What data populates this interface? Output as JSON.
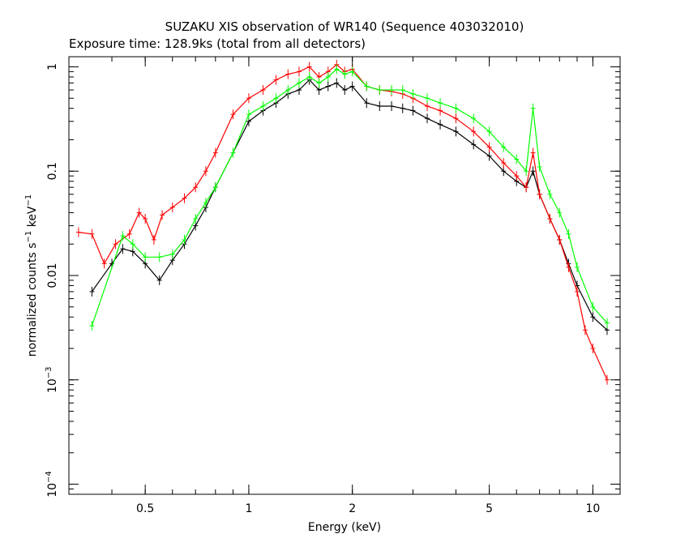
{
  "chart_data": {
    "type": "scatter",
    "title": "SUZAKU XIS observation of WR140 (Sequence 403032010)",
    "subtitle": "Exposure time: 128.9ks (total from all detectors)",
    "xlabel": "Energy (keV)",
    "ylabel_main": "normalized counts s",
    "ylabel_sup1": "−1",
    "ylabel_mid": " keV",
    "ylabel_sup2": "−1",
    "x_scale": "log",
    "y_scale": "log",
    "xlim": [
      0.3,
      12
    ],
    "ylim": [
      8e-05,
      1.25
    ],
    "x_ticks": [
      {
        "value": 0.5,
        "label": "0.5"
      },
      {
        "value": 1,
        "label": "1"
      },
      {
        "value": 2,
        "label": "2"
      },
      {
        "value": 5,
        "label": "5"
      },
      {
        "value": 10,
        "label": "10"
      }
    ],
    "y_ticks": [
      {
        "value": 1,
        "label": "1",
        "sup": ""
      },
      {
        "value": 0.1,
        "label": "0.1",
        "sup": ""
      },
      {
        "value": 0.01,
        "label": "0.01",
        "sup": ""
      },
      {
        "value": 0.001,
        "label": "10",
        "sup": "−3"
      },
      {
        "value": 0.0001,
        "label": "10",
        "sup": "−4"
      }
    ],
    "grid": false,
    "series": [
      {
        "color": "#000000",
        "x": [
          0.35,
          0.4,
          0.43,
          0.46,
          0.5,
          0.55,
          0.6,
          0.65,
          0.7,
          0.75,
          0.8,
          0.9,
          1.0,
          1.1,
          1.2,
          1.3,
          1.4,
          1.5,
          1.6,
          1.7,
          1.8,
          1.9,
          2.0,
          2.2,
          2.4,
          2.6,
          2.8,
          3.0,
          3.3,
          3.6,
          4.0,
          4.5,
          5.0,
          5.5,
          6.0,
          6.4,
          6.7,
          7.0,
          7.5,
          8.0,
          8.5,
          9.0,
          10.0,
          11.0
        ],
        "y": [
          0.007,
          0.013,
          0.018,
          0.017,
          0.013,
          0.009,
          0.014,
          0.02,
          0.03,
          0.045,
          0.07,
          0.15,
          0.3,
          0.38,
          0.45,
          0.55,
          0.6,
          0.75,
          0.6,
          0.65,
          0.7,
          0.6,
          0.65,
          0.45,
          0.42,
          0.42,
          0.4,
          0.38,
          0.32,
          0.28,
          0.24,
          0.18,
          0.14,
          0.1,
          0.08,
          0.07,
          0.1,
          0.06,
          0.035,
          0.022,
          0.013,
          0.008,
          0.004,
          0.003
        ]
      },
      {
        "color": "#ff0000",
        "x": [
          0.32,
          0.35,
          0.38,
          0.41,
          0.45,
          0.48,
          0.5,
          0.53,
          0.56,
          0.6,
          0.65,
          0.7,
          0.75,
          0.8,
          0.9,
          1.0,
          1.1,
          1.2,
          1.3,
          1.4,
          1.5,
          1.6,
          1.7,
          1.8,
          1.9,
          2.0,
          2.2,
          2.4,
          2.6,
          2.8,
          3.0,
          3.3,
          3.6,
          4.0,
          4.5,
          5.0,
          5.5,
          6.0,
          6.4,
          6.7,
          7.0,
          7.5,
          8.0,
          8.5,
          9.0,
          9.5,
          10.0,
          11.0
        ],
        "y": [
          0.026,
          0.025,
          0.013,
          0.02,
          0.025,
          0.04,
          0.035,
          0.022,
          0.038,
          0.045,
          0.055,
          0.07,
          0.1,
          0.15,
          0.35,
          0.5,
          0.6,
          0.75,
          0.85,
          0.9,
          1.0,
          0.8,
          0.9,
          1.05,
          0.9,
          0.95,
          0.65,
          0.6,
          0.58,
          0.55,
          0.5,
          0.42,
          0.38,
          0.32,
          0.24,
          0.17,
          0.12,
          0.09,
          0.07,
          0.15,
          0.06,
          0.035,
          0.022,
          0.012,
          0.007,
          0.003,
          0.002,
          0.001
        ]
      },
      {
        "color": "#00ff00",
        "x": [
          0.35,
          0.43,
          0.46,
          0.5,
          0.55,
          0.6,
          0.65,
          0.7,
          0.75,
          0.8,
          0.9,
          1.0,
          1.1,
          1.2,
          1.3,
          1.4,
          1.5,
          1.6,
          1.7,
          1.8,
          1.9,
          2.0,
          2.2,
          2.4,
          2.6,
          2.8,
          3.0,
          3.3,
          3.6,
          4.0,
          4.5,
          5.0,
          5.5,
          6.0,
          6.4,
          6.7,
          7.0,
          7.5,
          8.0,
          8.5,
          9.0,
          10.0,
          11.0
        ],
        "y": [
          0.0033,
          0.024,
          0.02,
          0.015,
          0.015,
          0.016,
          0.022,
          0.035,
          0.05,
          0.07,
          0.15,
          0.35,
          0.42,
          0.5,
          0.6,
          0.7,
          0.8,
          0.7,
          0.8,
          0.95,
          0.85,
          0.9,
          0.65,
          0.6,
          0.6,
          0.6,
          0.55,
          0.5,
          0.45,
          0.4,
          0.32,
          0.24,
          0.17,
          0.13,
          0.1,
          0.4,
          0.11,
          0.06,
          0.04,
          0.025,
          0.012,
          0.005,
          0.0035
        ]
      }
    ]
  }
}
